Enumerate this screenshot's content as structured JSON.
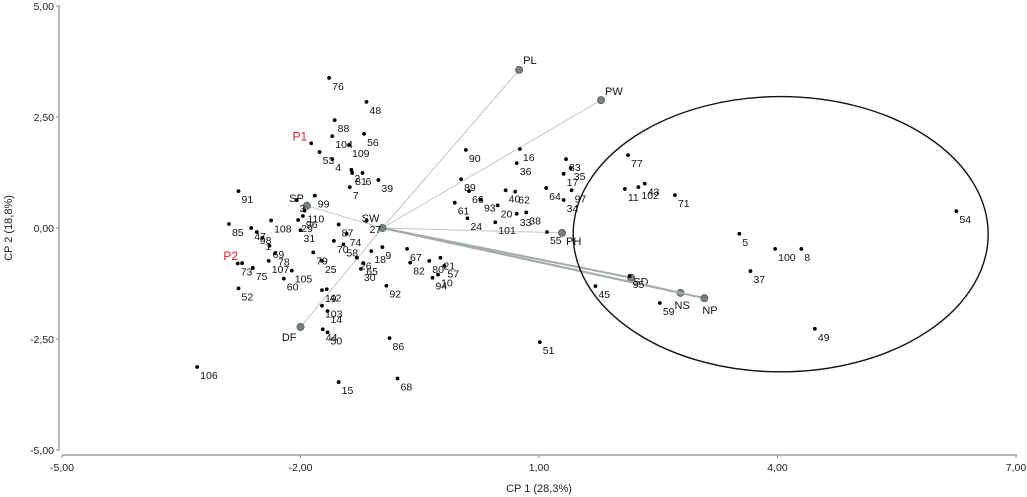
{
  "chart_data": {
    "type": "scatter",
    "subtype": "pca-biplot",
    "title": "",
    "xlabel": "CP 1 (28,3%)",
    "ylabel": "CP 2 (18,8%)",
    "xlim": [
      -5,
      7
    ],
    "ylim": [
      -5,
      5
    ],
    "x_ticks": [
      "-5,00",
      "-2,00",
      "1,00",
      "4,00",
      "7,00"
    ],
    "y_ticks": [
      "5,00",
      "2,50",
      "0,00",
      "-2,50",
      "-5,00"
    ],
    "grid": false,
    "legend": null,
    "origin": {
      "label": "SW",
      "x": -0.97,
      "y": 0.0
    },
    "variables": [
      {
        "name": "PL",
        "x": 0.75,
        "y": 3.56
      },
      {
        "name": "PW",
        "x": 1.78,
        "y": 2.88
      },
      {
        "name": "PH",
        "x": 1.29,
        "y": -0.11
      },
      {
        "name": "SD",
        "x": 2.16,
        "y": -1.12
      },
      {
        "name": "NS",
        "x": 2.78,
        "y": -1.46
      },
      {
        "name": "NP",
        "x": 3.08,
        "y": -1.58
      },
      {
        "name": "DF",
        "x": -2.0,
        "y": -2.23
      },
      {
        "name": "SP",
        "x": -1.92,
        "y": 0.5
      }
    ],
    "highlighted_points": [
      {
        "name": "P1",
        "x": -1.89,
        "y": 1.93,
        "color": "#e0202a"
      },
      {
        "name": "P2",
        "x": -2.76,
        "y": -0.77,
        "color": "#e0202a"
      }
    ],
    "points": [
      {
        "id": "76",
        "x": -1.64,
        "y": 3.38
      },
      {
        "id": "48",
        "x": -1.17,
        "y": 2.84
      },
      {
        "id": "88",
        "x": -1.57,
        "y": 2.43
      },
      {
        "id": "104",
        "x": -1.6,
        "y": 2.07
      },
      {
        "id": "109",
        "x": -1.39,
        "y": 1.87
      },
      {
        "id": "56",
        "x": -1.2,
        "y": 2.12
      },
      {
        "id": "53",
        "x": -1.76,
        "y": 1.71
      },
      {
        "id": "4",
        "x": -1.6,
        "y": 1.55
      },
      {
        "id": "2",
        "x": -1.36,
        "y": 1.31
      },
      {
        "id": "81",
        "x": -1.35,
        "y": 1.24
      },
      {
        "id": "7",
        "x": -1.38,
        "y": 0.92
      },
      {
        "id": "91",
        "x": -2.78,
        "y": 0.83
      },
      {
        "id": "6",
        "x": -1.22,
        "y": 1.24
      },
      {
        "id": "39",
        "x": -1.02,
        "y": 1.08
      },
      {
        "id": "90",
        "x": 0.08,
        "y": 1.76
      },
      {
        "id": "16",
        "x": 0.76,
        "y": 1.78
      },
      {
        "id": "36",
        "x": 0.72,
        "y": 1.46
      },
      {
        "id": "89",
        "x": 0.02,
        "y": 1.1
      },
      {
        "id": "66",
        "x": 0.12,
        "y": 0.83
      },
      {
        "id": "61",
        "x": -0.06,
        "y": 0.57
      },
      {
        "id": "93",
        "x": 0.27,
        "y": 0.64
      },
      {
        "id": "20",
        "x": 0.48,
        "y": 0.51
      },
      {
        "id": "40",
        "x": 0.58,
        "y": 0.85
      },
      {
        "id": "62",
        "x": 0.7,
        "y": 0.82
      },
      {
        "id": "33",
        "x": 0.72,
        "y": 0.32
      },
      {
        "id": "38",
        "x": 0.84,
        "y": 0.35
      },
      {
        "id": "24",
        "x": 0.1,
        "y": 0.22
      },
      {
        "id": "101",
        "x": 0.45,
        "y": 0.13
      },
      {
        "id": "83",
        "x": 1.34,
        "y": 1.55
      },
      {
        "id": "17",
        "x": 1.31,
        "y": 1.22
      },
      {
        "id": "35",
        "x": 1.4,
        "y": 1.35
      },
      {
        "id": "64",
        "x": 1.09,
        "y": 0.9
      },
      {
        "id": "97",
        "x": 1.41,
        "y": 0.85
      },
      {
        "id": "34",
        "x": 1.31,
        "y": 0.63
      },
      {
        "id": "55",
        "x": 1.1,
        "y": -0.09
      },
      {
        "id": "3",
        "x": -2.05,
        "y": 0.63
      },
      {
        "id": "110",
        "x": -1.95,
        "y": 0.39
      },
      {
        "id": "99",
        "x": -1.82,
        "y": 0.73
      },
      {
        "id": "29",
        "x": -2.03,
        "y": 0.18
      },
      {
        "id": "96",
        "x": -1.97,
        "y": 0.27
      },
      {
        "id": "27",
        "x": -1.17,
        "y": 0.16
      },
      {
        "id": "87",
        "x": -1.52,
        "y": 0.08
      },
      {
        "id": "31",
        "x": -2.0,
        "y": -0.05
      },
      {
        "id": "74",
        "x": -1.42,
        "y": -0.13
      },
      {
        "id": "70",
        "x": -1.58,
        "y": -0.29
      },
      {
        "id": "58",
        "x": -1.46,
        "y": -0.37
      },
      {
        "id": "79",
        "x": -1.84,
        "y": -0.55
      },
      {
        "id": "25",
        "x": -1.73,
        "y": -0.74
      },
      {
        "id": "26",
        "x": -1.29,
        "y": -0.67
      },
      {
        "id": "65",
        "x": -1.21,
        "y": -0.79
      },
      {
        "id": "30",
        "x": -1.24,
        "y": -0.92
      },
      {
        "id": "18",
        "x": -1.11,
        "y": -0.52
      },
      {
        "id": "9",
        "x": -0.97,
        "y": -0.43
      },
      {
        "id": "67",
        "x": -0.66,
        "y": -0.47
      },
      {
        "id": "80",
        "x": -0.38,
        "y": -0.74
      },
      {
        "id": "82",
        "x": -0.62,
        "y": -0.78
      },
      {
        "id": "21",
        "x": -0.24,
        "y": -0.67
      },
      {
        "id": "57",
        "x": -0.19,
        "y": -0.85
      },
      {
        "id": "10",
        "x": -0.27,
        "y": -1.05
      },
      {
        "id": "94",
        "x": -0.34,
        "y": -1.12
      },
      {
        "id": "105",
        "x": -2.11,
        "y": -0.96
      },
      {
        "id": "60",
        "x": -2.21,
        "y": -1.14
      },
      {
        "id": "19",
        "x": -1.73,
        "y": -1.4
      },
      {
        "id": "42",
        "x": -1.67,
        "y": -1.38
      },
      {
        "id": "103",
        "x": -1.73,
        "y": -1.75
      },
      {
        "id": "14",
        "x": -1.66,
        "y": -1.87
      },
      {
        "id": "44",
        "x": -1.72,
        "y": -2.28
      },
      {
        "id": "50",
        "x": -1.66,
        "y": -2.35
      },
      {
        "id": "92",
        "x": -0.92,
        "y": -1.3
      },
      {
        "id": "86",
        "x": -0.88,
        "y": -2.48
      },
      {
        "id": "51",
        "x": 1.01,
        "y": -2.57
      },
      {
        "id": "15",
        "x": -1.52,
        "y": -3.47
      },
      {
        "id": "68",
        "x": -0.78,
        "y": -3.39
      },
      {
        "id": "108",
        "x": -2.37,
        "y": 0.17
      },
      {
        "id": "85",
        "x": -2.9,
        "y": 0.09
      },
      {
        "id": "47",
        "x": -2.62,
        "y": 0.0
      },
      {
        "id": "98",
        "x": -2.55,
        "y": -0.09
      },
      {
        "id": "1",
        "x": -2.48,
        "y": -0.22
      },
      {
        "id": "69",
        "x": -2.39,
        "y": -0.4
      },
      {
        "id": "78",
        "x": -2.32,
        "y": -0.57
      },
      {
        "id": "107",
        "x": -2.4,
        "y": -0.74
      },
      {
        "id": "73",
        "x": -2.79,
        "y": -0.8
      },
      {
        "id": "75",
        "x": -2.6,
        "y": -0.9
      },
      {
        "id": "52",
        "x": -2.78,
        "y": -1.36
      },
      {
        "id": "106",
        "x": -3.3,
        "y": -3.13
      },
      {
        "id": "77",
        "x": 2.12,
        "y": 1.64
      },
      {
        "id": "11",
        "x": 2.08,
        "y": 0.88
      },
      {
        "id": "102",
        "x": 2.25,
        "y": 0.92
      },
      {
        "id": "43",
        "x": 2.33,
        "y": 1.0
      },
      {
        "id": "71",
        "x": 2.71,
        "y": 0.74
      },
      {
        "id": "5",
        "x": 3.52,
        "y": -0.13
      },
      {
        "id": "37",
        "x": 3.66,
        "y": -0.97
      },
      {
        "id": "45",
        "x": 1.71,
        "y": -1.31
      },
      {
        "id": "95",
        "x": 2.14,
        "y": -1.08
      },
      {
        "id": "59",
        "x": 2.52,
        "y": -1.69
      },
      {
        "id": "100",
        "x": 3.97,
        "y": -0.47
      },
      {
        "id": "8",
        "x": 4.3,
        "y": -0.47
      },
      {
        "id": "49",
        "x": 4.47,
        "y": -2.27
      },
      {
        "id": "54",
        "x": 6.25,
        "y": 0.38
      }
    ],
    "annotations": [
      {
        "type": "ellipse",
        "cx": 4.04,
        "cy": -0.14,
        "rx": 2.61,
        "ry": 3.1,
        "description": "encircles group of points to the right incl. NS, NP, SD vectors"
      }
    ]
  }
}
